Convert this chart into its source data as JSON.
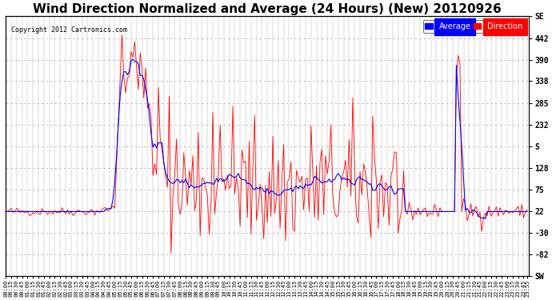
{
  "title": "Wind Direction Normalized and Average (24 Hours) (New) 20120926",
  "copyright": "Copyright 2012 Cartronics.com",
  "legend_labels": [
    "Average",
    "Direction"
  ],
  "legend_colors": [
    "blue",
    "red"
  ],
  "yticks_right": [
    "SE",
    "442",
    "390",
    "338",
    "285",
    "232",
    "S",
    "128",
    "75",
    "22",
    "-30",
    "-82",
    "SW"
  ],
  "ytick_values": [
    495,
    442,
    390,
    338,
    285,
    232,
    180,
    128,
    75,
    22,
    -30,
    -82,
    -135
  ],
  "ylim": [
    -135,
    495
  ],
  "xlim_start": 0,
  "xlim_end": 288,
  "background_color": "#ffffff",
  "grid_color": "#aaaaaa",
  "title_fontsize": 11,
  "blue_line_color": "#0000ff",
  "red_line_color": "#ff0000",
  "black_line_color": "#000000"
}
